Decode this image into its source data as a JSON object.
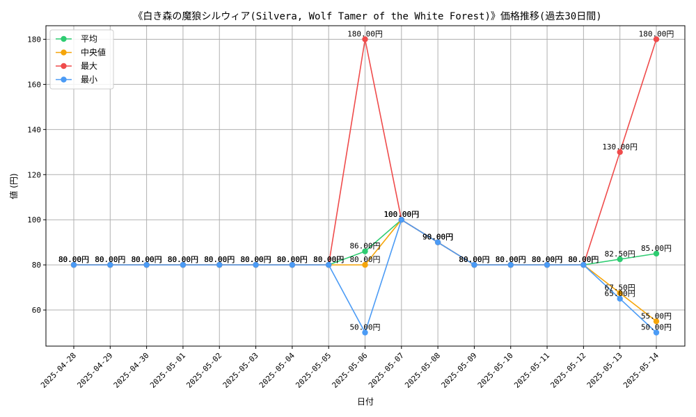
{
  "chart_data": {
    "type": "line",
    "title": "《白き森の魔狼シルウィア(Silvera, Wolf Tamer of the White Forest)》価格推移(過去30日間)",
    "xlabel": "日付",
    "ylabel": "値 (円)",
    "ylim": [
      44,
      186
    ],
    "yticks": [
      60,
      80,
      100,
      120,
      140,
      160,
      180
    ],
    "grid": true,
    "legend_position": "top-left",
    "value_suffix": "円",
    "categories": [
      "2025-04-28",
      "2025-04-29",
      "2025-04-30",
      "2025-05-01",
      "2025-05-02",
      "2025-05-03",
      "2025-05-04",
      "2025-05-05",
      "2025-05-06",
      "2025-05-07",
      "2025-05-08",
      "2025-05-09",
      "2025-05-10",
      "2025-05-11",
      "2025-05-12",
      "2025-05-13",
      "2025-05-14"
    ],
    "series": [
      {
        "name": "平均",
        "color": "#2ecc71",
        "values": [
          80,
          80,
          80,
          80,
          80,
          80,
          80,
          80,
          86,
          100,
          90,
          80,
          80,
          80,
          80,
          82.5,
          85
        ]
      },
      {
        "name": "中央値",
        "color": "#f5a50a",
        "values": [
          80,
          80,
          80,
          80,
          80,
          80,
          80,
          80,
          80,
          100,
          90,
          80,
          80,
          80,
          80,
          67.5,
          55
        ]
      },
      {
        "name": "最大",
        "color": "#ef4b4b",
        "values": [
          80,
          80,
          80,
          80,
          80,
          80,
          80,
          80,
          180,
          100,
          90,
          80,
          80,
          80,
          80,
          130,
          180
        ]
      },
      {
        "name": "最小",
        "color": "#4b9bf5",
        "values": [
          80,
          80,
          80,
          80,
          80,
          80,
          80,
          80,
          50,
          100,
          90,
          80,
          80,
          80,
          80,
          65,
          50
        ]
      }
    ]
  }
}
